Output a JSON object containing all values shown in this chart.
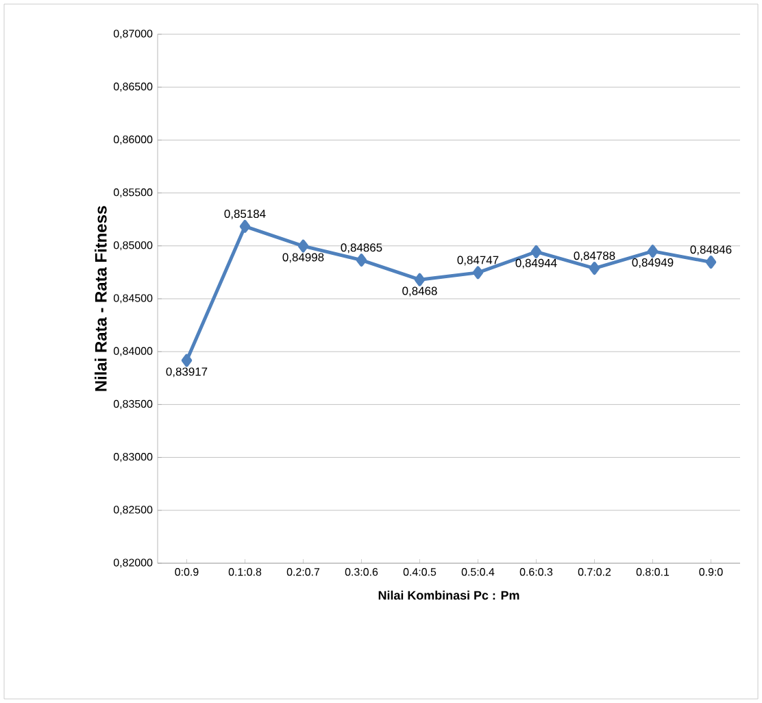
{
  "chart_data": {
    "type": "line",
    "xlabel": "Nilai Kombinasi Pc : Pm",
    "ylabel": "Nilai Rata - Rata Fitness",
    "categories": [
      "0:0.9",
      "0.1:0.8",
      "0.2:0.7",
      "0.3:0.6",
      "0.4:0.5",
      "0.5:0.4",
      "0.6:0.3",
      "0.7:0.2",
      "0.8:0.1",
      "0.9:0"
    ],
    "series": [
      {
        "color": "#4f81bd",
        "values": [
          0.83917,
          0.85184,
          0.84998,
          0.84865,
          0.8468,
          0.84747,
          0.84944,
          0.84788,
          0.84949,
          0.84846
        ],
        "value_labels": [
          "0,83917",
          "0,85184",
          "0,84998",
          "0,84865",
          "0,8468",
          "0,84747",
          "0,84944",
          "0,84788",
          "0,84949",
          "0,84846"
        ]
      }
    ],
    "ylim": [
      0.82,
      0.87
    ],
    "yticks": [
      {
        "value": 0.82,
        "label": "0,82000"
      },
      {
        "value": 0.825,
        "label": "0,82500"
      },
      {
        "value": 0.83,
        "label": "0,83000"
      },
      {
        "value": 0.835,
        "label": "0,83500"
      },
      {
        "value": 0.84,
        "label": "0,84000"
      },
      {
        "value": 0.845,
        "label": "0,84500"
      },
      {
        "value": 0.85,
        "label": "0,85000"
      },
      {
        "value": 0.855,
        "label": "0,85500"
      },
      {
        "value": 0.86,
        "label": "0,86000"
      },
      {
        "value": 0.865,
        "label": "0,86500"
      },
      {
        "value": 0.87,
        "label": "0,87000"
      }
    ],
    "grid": "y",
    "marker": "diamond"
  }
}
